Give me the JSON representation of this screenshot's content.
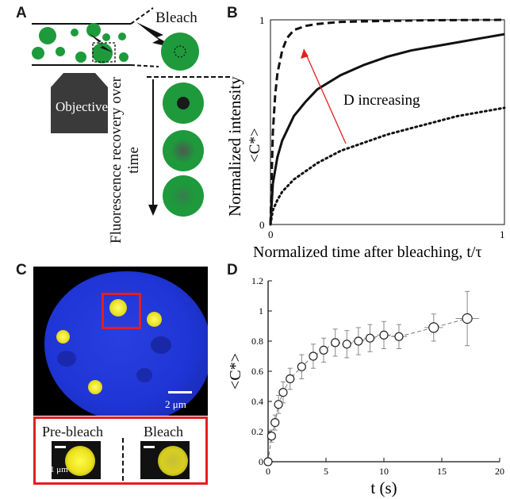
{
  "figure": {
    "panels": {
      "a": {
        "letter": "A",
        "bleach_label": "Bleach",
        "objective_label": "Objective",
        "recovery_label": "Fluorescence recovery over time"
      },
      "b": {
        "letter": "B",
        "annotation": "D increasing",
        "ylabel_main": "Normalized intensity",
        "ylabel_sym": "<C*>",
        "xlabel": "Normalized time after bleaching, t/τ",
        "ytick_top": "1",
        "ytick_bottom": "0",
        "xtick_left": "0",
        "xtick_right": "1"
      },
      "c": {
        "letter": "C",
        "scale_bar_main": "2 μm",
        "scale_bar_inset": "1 μm",
        "prebleach_label": "Pre-bleach",
        "bleach_label": "Bleach"
      },
      "d": {
        "letter": "D"
      }
    },
    "colors": {
      "droplet_green": "#1e9a3c",
      "nucleus_blue": "#1f35d6",
      "condensate_yellow": "#e8e01c",
      "highlight_red": "#e02020",
      "arrow_red": "#e02020"
    }
  },
  "chart_data": [
    {
      "type": "line",
      "panel": "B",
      "xlabel": "Normalized time after bleaching, t/τ",
      "ylabel": "Normalized intensity <C*>",
      "xlim": [
        0,
        1
      ],
      "ylim": [
        0,
        1
      ],
      "xticks": [
        "0",
        "1"
      ],
      "yticks": [
        "0",
        "1"
      ],
      "annotation": "D increasing",
      "series": [
        {
          "style": "dashed",
          "x": [
            0,
            0.01,
            0.02,
            0.03,
            0.05,
            0.07,
            0.1,
            0.15,
            0.2,
            0.3,
            0.5,
            0.7,
            1.0
          ],
          "y": [
            0,
            0.45,
            0.63,
            0.74,
            0.85,
            0.91,
            0.95,
            0.97,
            0.98,
            0.99,
            0.995,
            0.998,
            1.0
          ]
        },
        {
          "style": "solid",
          "x": [
            0,
            0.01,
            0.03,
            0.05,
            0.1,
            0.15,
            0.2,
            0.3,
            0.4,
            0.5,
            0.6,
            0.7,
            0.8,
            0.9,
            1.0
          ],
          "y": [
            0,
            0.2,
            0.33,
            0.41,
            0.53,
            0.6,
            0.66,
            0.73,
            0.78,
            0.82,
            0.85,
            0.87,
            0.89,
            0.91,
            0.93
          ]
        },
        {
          "style": "dotted",
          "x": [
            0,
            0.01,
            0.03,
            0.05,
            0.1,
            0.2,
            0.3,
            0.4,
            0.5,
            0.6,
            0.7,
            0.8,
            0.9,
            1.0
          ],
          "y": [
            0,
            0.07,
            0.12,
            0.16,
            0.22,
            0.3,
            0.36,
            0.4,
            0.44,
            0.47,
            0.5,
            0.53,
            0.55,
            0.57
          ]
        }
      ]
    },
    {
      "type": "scatter",
      "panel": "D",
      "xlabel": "t (s)",
      "ylabel": "<C*>",
      "xlim": [
        0,
        20
      ],
      "ylim": [
        0,
        1.2
      ],
      "xticks": [
        "0",
        "5",
        "10",
        "15",
        "20"
      ],
      "yticks": [
        "0",
        "0.2",
        "0.4",
        "0.6",
        "0.8",
        "1",
        "1.2"
      ],
      "series": [
        {
          "style": "open-circle-dashed",
          "x": [
            0,
            0.3,
            0.6,
            0.9,
            1.3,
            1.9,
            2.9,
            3.9,
            4.8,
            5.8,
            6.8,
            7.8,
            8.8,
            10.0,
            11.3,
            14.3,
            17.2
          ],
          "y": [
            0,
            0.17,
            0.26,
            0.38,
            0.46,
            0.55,
            0.63,
            0.7,
            0.74,
            0.79,
            0.78,
            0.8,
            0.82,
            0.84,
            0.83,
            0.89,
            0.95
          ],
          "yerr": [
            0.02,
            0.04,
            0.05,
            0.06,
            0.07,
            0.07,
            0.08,
            0.08,
            0.08,
            0.09,
            0.09,
            0.09,
            0.09,
            0.09,
            0.08,
            0.09,
            0.18
          ],
          "xerr": [
            0.2,
            0.2,
            0.2,
            0.3,
            0.3,
            0.3,
            0.3,
            0.3,
            0.3,
            0.4,
            0.4,
            0.5,
            0.5,
            0.6,
            0.7,
            0.8,
            1.0
          ]
        }
      ]
    }
  ]
}
